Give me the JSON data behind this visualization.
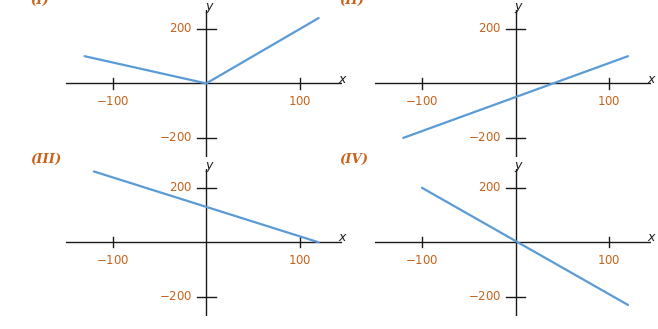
{
  "panels": [
    {
      "label": "(I)",
      "line_color": "#5b9bd5",
      "lines": [
        [
          [
            -130,
            100
          ],
          [
            0,
            0
          ]
        ],
        [
          [
            0,
            0
          ],
          [
            120,
            240
          ]
        ]
      ]
    },
    {
      "label": "(II)",
      "line_color": "#5b9bd5",
      "lines": [
        [
          [
            -120,
            -200
          ],
          [
            120,
            100
          ]
        ]
      ]
    },
    {
      "label": "(III)",
      "line_color": "#5b9bd5",
      "lines": [
        [
          [
            -120,
            260
          ],
          [
            120,
            0
          ]
        ]
      ]
    },
    {
      "label": "(IV)",
      "line_color": "#5b9bd5",
      "lines": [
        [
          [
            -100,
            200
          ],
          [
            120,
            -230
          ]
        ]
      ]
    }
  ],
  "xlim": [
    -150,
    145
  ],
  "ylim": [
    -270,
    270
  ],
  "xticks": [
    -100,
    100
  ],
  "yticks": [
    -200,
    200
  ],
  "label_color": "#c8621a",
  "axis_color": "#1a1a1a",
  "background_color": "#ffffff",
  "line_width": 1.6,
  "axis_label_fontsize": 9,
  "tick_label_fontsize": 8.5,
  "panel_label_fontsize": 9.5
}
